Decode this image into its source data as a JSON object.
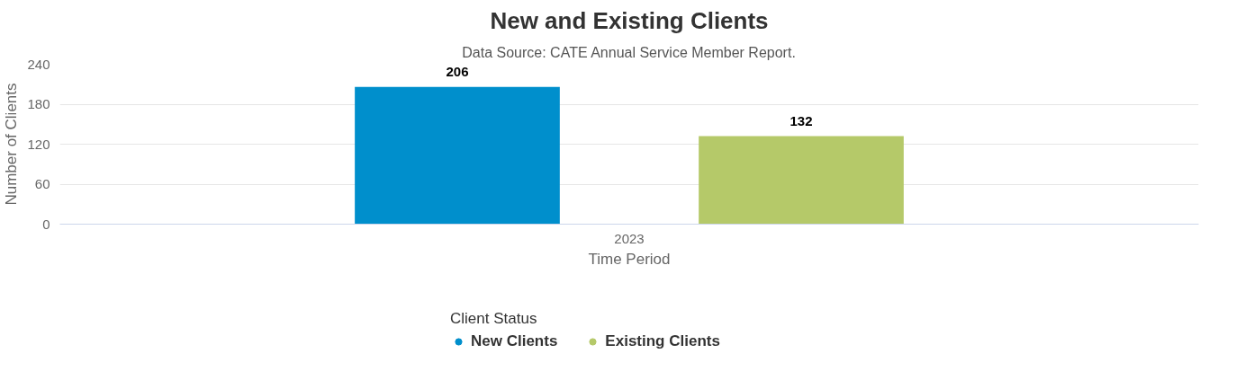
{
  "chart_data": {
    "type": "bar",
    "title": "New and Existing Clients",
    "subtitle": "Data Source: CATE Annual Service Member Report.",
    "xlabel": "Time Period",
    "ylabel": "Number of Clients",
    "legend_title": "Client Status",
    "categories": [
      "2023"
    ],
    "series": [
      {
        "name": "New Clients",
        "color": "#008fcc",
        "values": [
          206
        ]
      },
      {
        "name": "Existing Clients",
        "color": "#b5c969",
        "values": [
          132
        ]
      }
    ],
    "ylim": [
      0,
      240
    ],
    "yticks": [
      0,
      60,
      120,
      180,
      240
    ],
    "grid": "y",
    "legend": "bottom",
    "data_labels": true
  }
}
